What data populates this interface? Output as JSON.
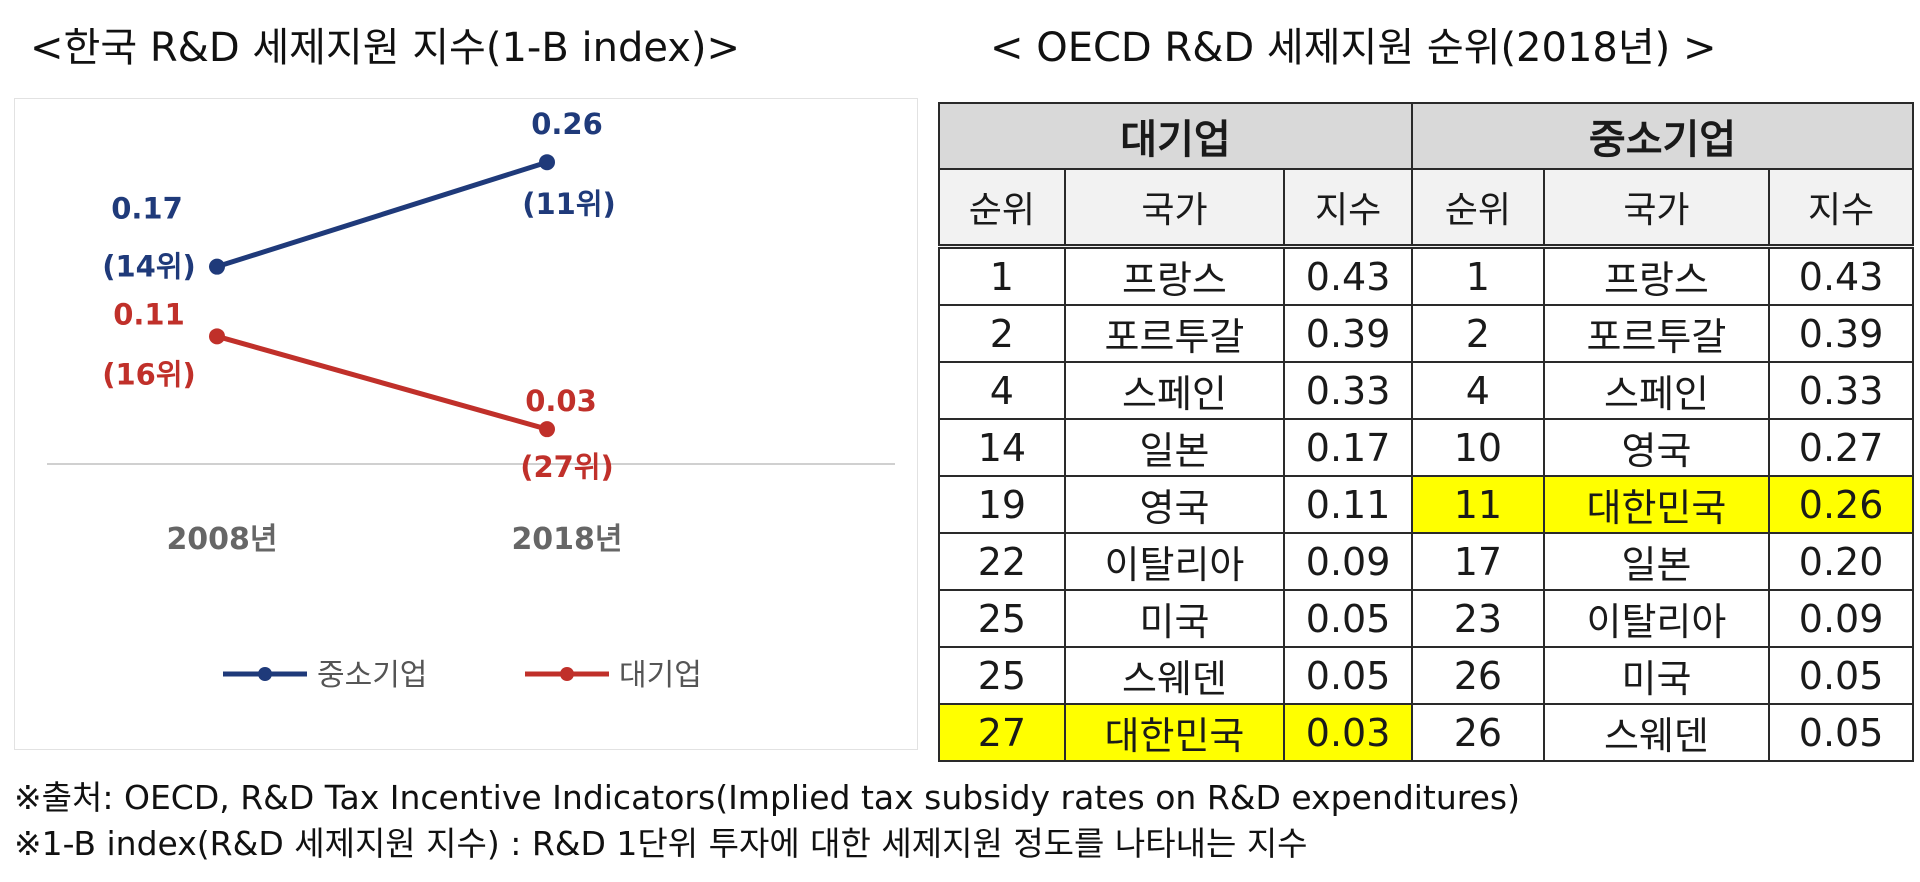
{
  "left_title": "<한국 R&D 세제지원 지수(1-B index)>",
  "right_title": "< OECD R&D 세제지원 순위(2018년) >",
  "chart_data": {
    "type": "line",
    "x": [
      "2008년",
      "2018년"
    ],
    "series": [
      {
        "name": "중소기업",
        "color": "#1f3a7a",
        "values": [
          0.17,
          0.26
        ],
        "value_labels": [
          "0.17",
          "0.26"
        ],
        "rank_labels": [
          "(14위)",
          "(11위)"
        ]
      },
      {
        "name": "대기업",
        "color": "#c0302a",
        "values": [
          0.11,
          0.03
        ],
        "value_labels": [
          "0.11",
          "0.03"
        ],
        "rank_labels": [
          "(16위)",
          "(27위)"
        ]
      }
    ],
    "ylim": [
      0.0,
      0.28
    ],
    "legend_position": "bottom"
  },
  "table": {
    "group_headers": [
      "대기업",
      "중소기업"
    ],
    "col_headers": [
      "순위",
      "국가",
      "지수",
      "순위",
      "국가",
      "지수"
    ],
    "rows": [
      [
        "1",
        "프랑스",
        "0.43",
        "1",
        "프랑스",
        "0.43"
      ],
      [
        "2",
        "포르투갈",
        "0.39",
        "2",
        "포르투갈",
        "0.39"
      ],
      [
        "4",
        "스페인",
        "0.33",
        "4",
        "스페인",
        "0.33"
      ],
      [
        "14",
        "일본",
        "0.17",
        "10",
        "영국",
        "0.27"
      ],
      [
        "19",
        "영국",
        "0.11",
        "11",
        "대한민국",
        "0.26"
      ],
      [
        "22",
        "이탈리아",
        "0.09",
        "17",
        "일본",
        "0.20"
      ],
      [
        "25",
        "미국",
        "0.05",
        "23",
        "이탈리아",
        "0.09"
      ],
      [
        "25",
        "스웨덴",
        "0.05",
        "26",
        "미국",
        "0.05"
      ],
      [
        "27",
        "대한민국",
        "0.03",
        "26",
        "스웨덴",
        "0.05"
      ]
    ],
    "highlight_color": "#ffff00"
  },
  "notes": {
    "source": "※출처: OECD, R&D Tax Incentive Indicators(Implied tax subsidy rates on R&D expenditures)",
    "definition": "※1-B index(R&D 세제지원 지수) : R&D 1단위 투자에 대한 세제지원 정도를 나타내는 지수"
  }
}
